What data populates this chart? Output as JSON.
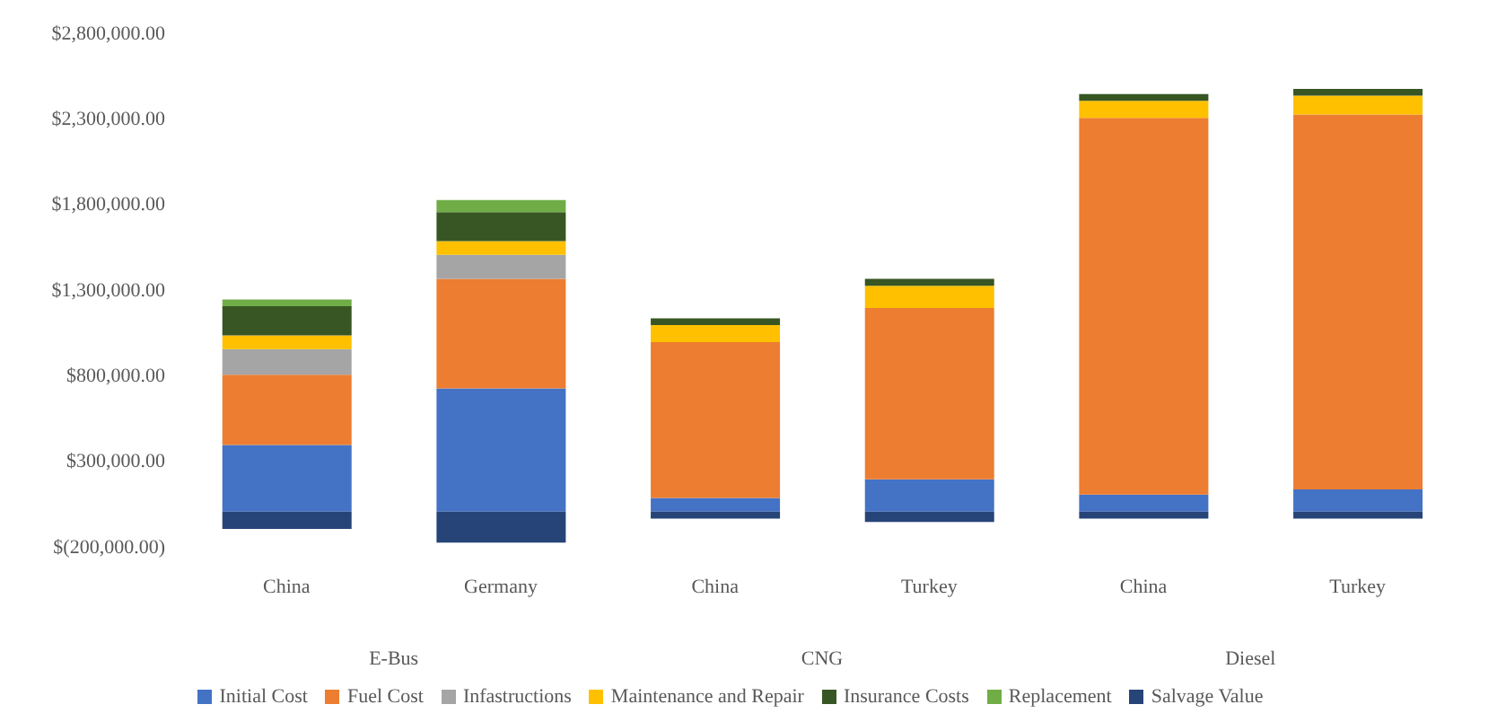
{
  "chart_data": {
    "type": "bar",
    "stacked": true,
    "categories": [
      "China",
      "Germany",
      "China",
      "Turkey",
      "China",
      "Turkey"
    ],
    "annotations": [
      "E-Bus",
      "CNG",
      "Diesel"
    ],
    "series": [
      {
        "name": "Initial Cost",
        "color": "#4472c4",
        "values": [
          390000,
          720000,
          80000,
          190000,
          100000,
          130000
        ]
      },
      {
        "name": "Fuel Cost",
        "color": "#ed7d31",
        "values": [
          410000,
          640000,
          910000,
          1000000,
          2200000,
          2190000
        ]
      },
      {
        "name": "Infastructions",
        "color": "#a5a5a5",
        "values": [
          150000,
          140000,
          0,
          0,
          0,
          0
        ]
      },
      {
        "name": "Maintenance and Repair",
        "color": "#ffc000",
        "values": [
          80000,
          80000,
          100000,
          130000,
          100000,
          110000
        ]
      },
      {
        "name": "Insurance Costs",
        "color": "#375623",
        "values": [
          170000,
          170000,
          40000,
          40000,
          40000,
          40000
        ]
      },
      {
        "name": "Replacement",
        "color": "#70ad47",
        "values": [
          40000,
          70000,
          0,
          0,
          0,
          0
        ]
      },
      {
        "name": "Salvage Value",
        "color": "#264478",
        "values": [
          -100000,
          -180000,
          -40000,
          -60000,
          -40000,
          -40000
        ]
      }
    ],
    "ylim": [
      -200000,
      2800000
    ],
    "yticks": [
      {
        "value": -200000,
        "label": "$(200,000.00)"
      },
      {
        "value": 300000,
        "label": "$300,000.00"
      },
      {
        "value": 800000,
        "label": "$800,000.00"
      },
      {
        "value": 1300000,
        "label": "$1,300,000.00"
      },
      {
        "value": 1800000,
        "label": "$1,800,000.00"
      },
      {
        "value": 2300000,
        "label": "$2,300,000.00"
      },
      {
        "value": 2800000,
        "label": "$2,800,000.00"
      }
    ],
    "grid": false,
    "legend": "bottom"
  }
}
